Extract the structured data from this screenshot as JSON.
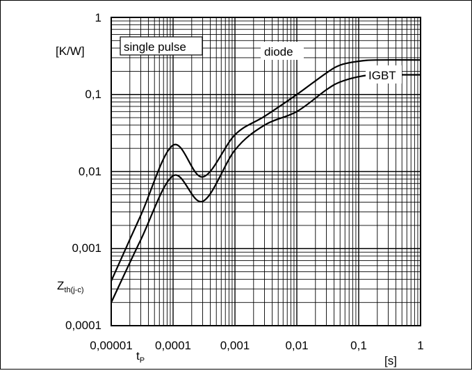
{
  "chart_data": {
    "type": "line",
    "x_scale": "log",
    "y_scale": "log",
    "xlim": [
      1e-05,
      1
    ],
    "ylim": [
      0.0001,
      1
    ],
    "grid": true,
    "x_tick_labels": [
      "0,00001",
      "0,0001",
      "0,001",
      "0,01",
      "0,1",
      "1"
    ],
    "y_tick_labels": [
      "1",
      "0,1",
      "0,01",
      "0,001",
      "0,0001"
    ],
    "x_unit": "[s]",
    "y_unit": "[K/W]",
    "x_symbol": {
      "main": "t",
      "sub": "P"
    },
    "y_symbol": {
      "main": "Z",
      "sub": "th(j-c)"
    },
    "annotation": "single pulse",
    "series": [
      {
        "name": "diode",
        "points": [
          [
            1e-05,
            0.00038
          ],
          [
            3e-05,
            0.0027
          ],
          [
            0.0001,
            0.022
          ],
          [
            0.0003,
            0.0085
          ],
          [
            0.001,
            0.03
          ],
          [
            0.003,
            0.052
          ],
          [
            0.01,
            0.1
          ],
          [
            0.03,
            0.19
          ],
          [
            0.05,
            0.24
          ],
          [
            0.1,
            0.27
          ],
          [
            0.2,
            0.28
          ],
          [
            1,
            0.28
          ]
        ]
      },
      {
        "name": "IGBT",
        "points": [
          [
            1e-05,
            0.0002
          ],
          [
            3e-05,
            0.0013
          ],
          [
            0.0001,
            0.0088
          ],
          [
            0.0003,
            0.0041
          ],
          [
            0.001,
            0.019
          ],
          [
            0.003,
            0.04
          ],
          [
            0.01,
            0.06
          ],
          [
            0.03,
            0.115
          ],
          [
            0.05,
            0.145
          ],
          [
            0.1,
            0.17
          ],
          [
            0.2,
            0.18
          ],
          [
            1,
            0.18
          ]
        ]
      }
    ]
  }
}
